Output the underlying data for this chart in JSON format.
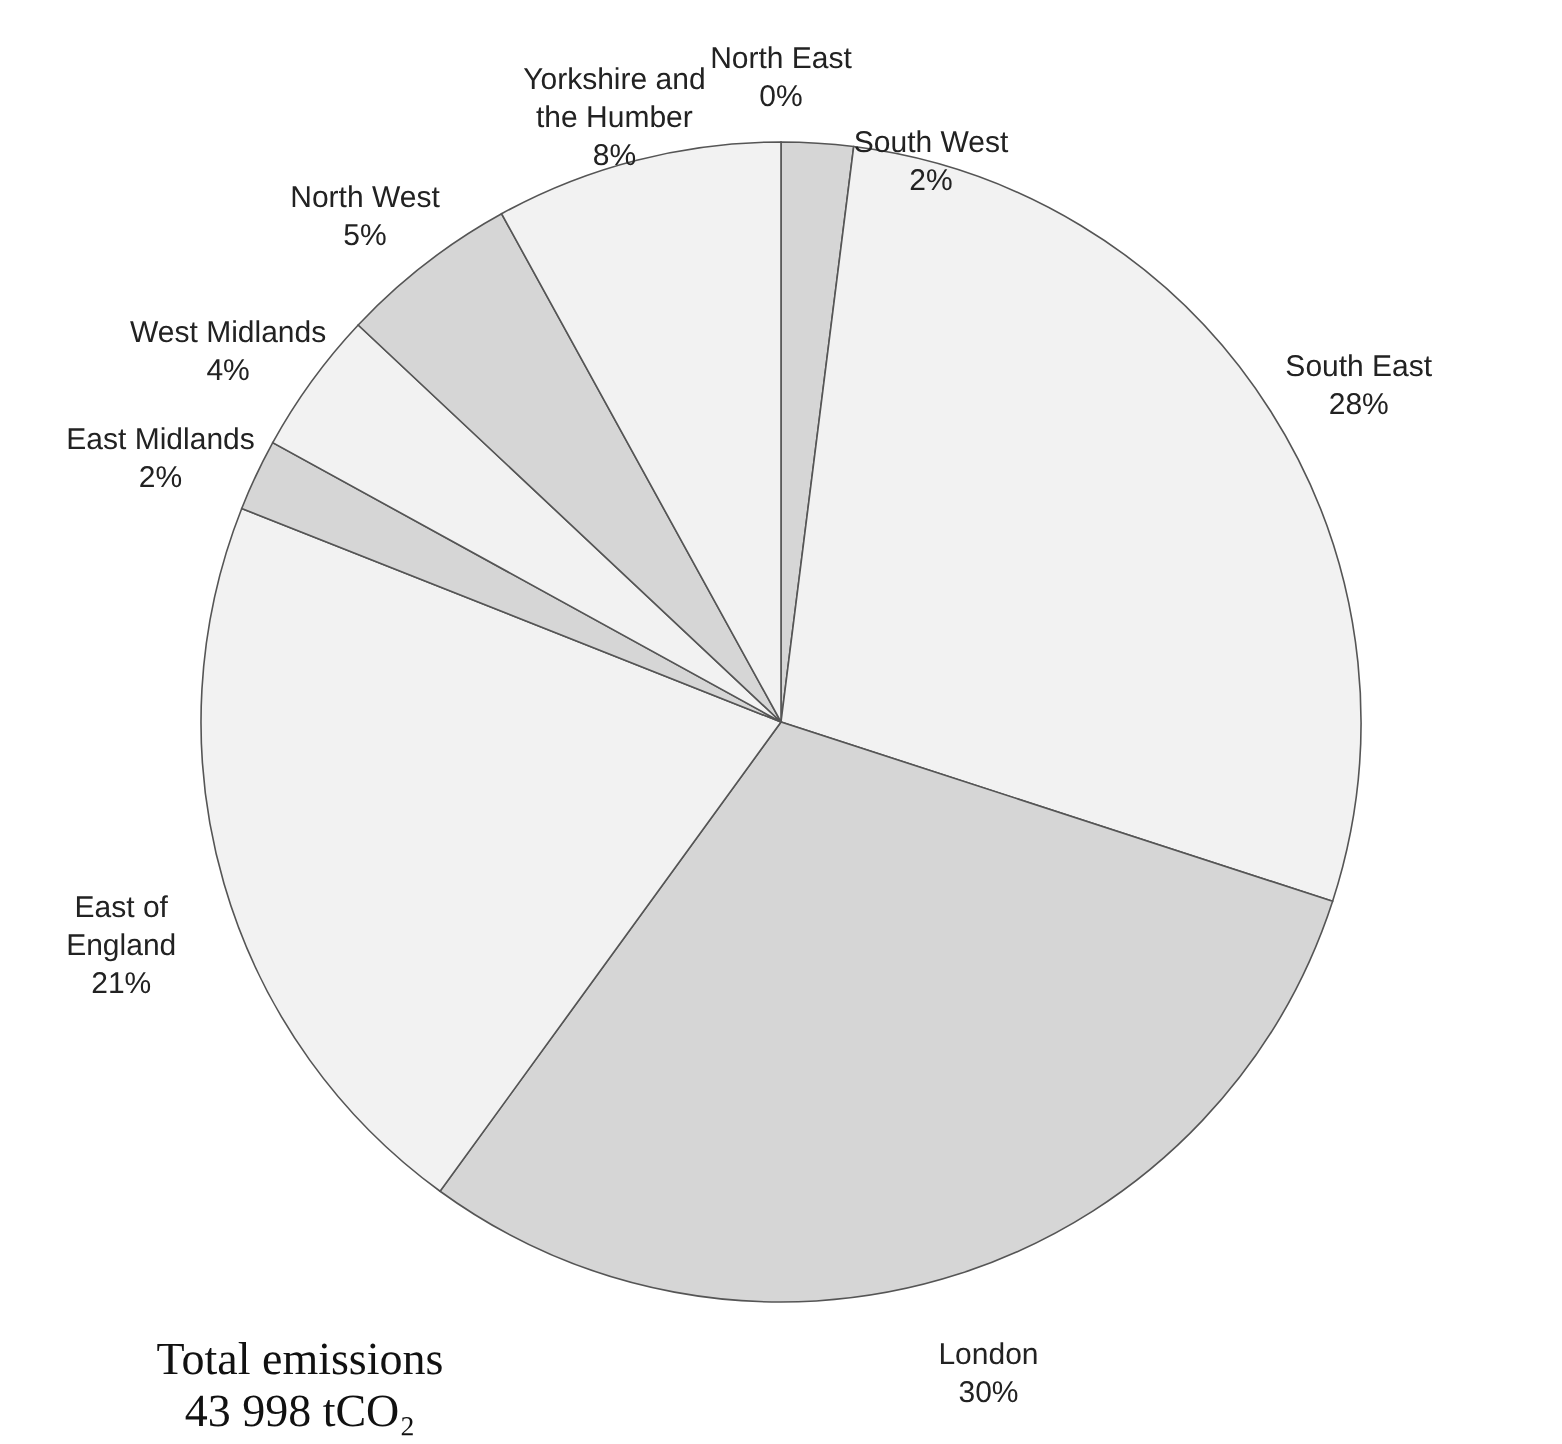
{
  "chart_data": {
    "type": "pie",
    "categories": [
      "North East",
      "South West",
      "South East",
      "London",
      "East of England",
      "East Midlands",
      "West Midlands",
      "North West",
      "Yorkshire and the Humber"
    ],
    "values": [
      0,
      2,
      28,
      30,
      21,
      2,
      4,
      5,
      8
    ],
    "value_labels": [
      "0%",
      "2%",
      "28%",
      "30%",
      "21%",
      "2%",
      "4%",
      "5%",
      "8%"
    ],
    "colors": [
      "#d6d6d6",
      "#d6d6d6",
      "#f2f2f2",
      "#d6d6d6",
      "#f2f2f2",
      "#d6d6d6",
      "#f2f2f2",
      "#d6d6d6",
      "#f2f2f2"
    ],
    "annotations": [
      "Total emissions 43 998 tCO₂"
    ]
  }
}
